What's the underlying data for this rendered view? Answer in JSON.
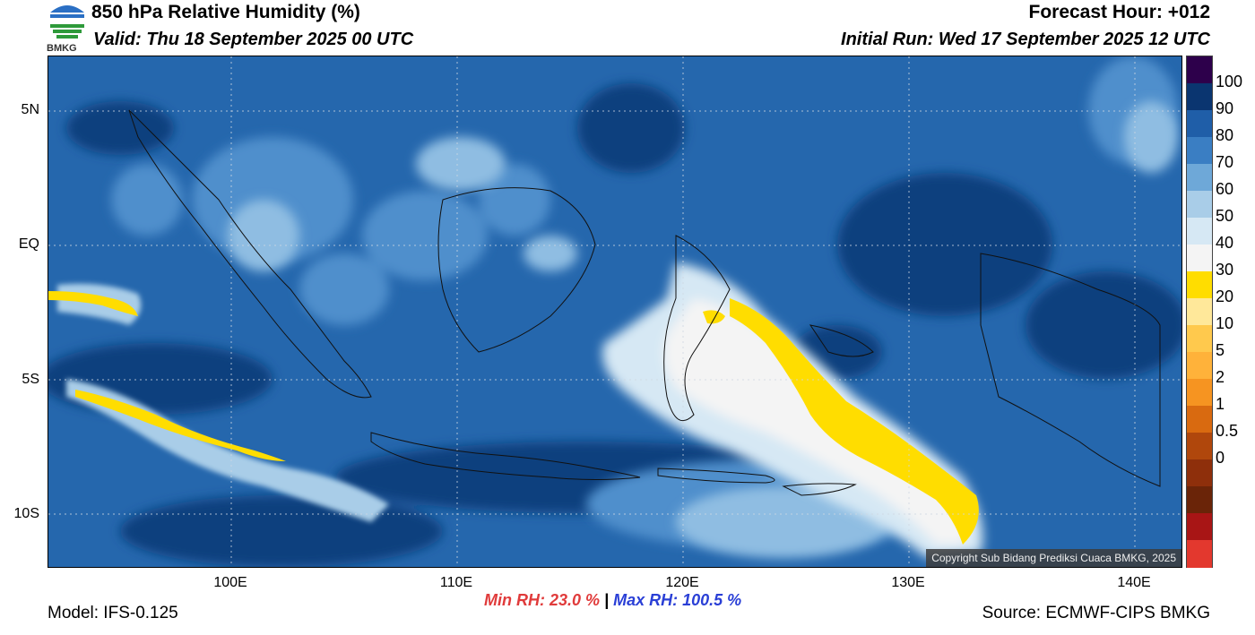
{
  "header": {
    "title": "850 hPa Relative Humidity (%)",
    "valid": "Valid: Thu 18 September 2025 00 UTC",
    "forecast_hour": "Forecast Hour: +012",
    "initial_run": "Initial Run: Wed 17 September 2025 12 UTC",
    "logo_text": "BMKG"
  },
  "map": {
    "lat_labels": [
      "5N",
      "EQ",
      "5S",
      "10S"
    ],
    "lon_labels": [
      "100E",
      "110E",
      "120E",
      "130E",
      "140E"
    ],
    "copyright": "Copyright Sub Bidang Prediksi Cuaca BMKG, 2025"
  },
  "colorbar": {
    "colors": [
      "#2d004b",
      "#0a3570",
      "#1f5ea8",
      "#3a7ec3",
      "#6ea8d8",
      "#a9cde8",
      "#d6e8f4",
      "#f4f4f4",
      "#ffdd00",
      "#ffe89a",
      "#ffc94d",
      "#ffb23a",
      "#f69421",
      "#d96a10",
      "#b0470c",
      "#8e2f0b",
      "#6a2408",
      "#a81515",
      "#e3382e"
    ],
    "labels": [
      "100",
      "90",
      "80",
      "70",
      "60",
      "50",
      "40",
      "30",
      "20",
      "10",
      "5",
      "2",
      "1",
      "0.5",
      "0"
    ]
  },
  "footer": {
    "model": "Model: IFS-0.125",
    "min_rh": "Min RH:  23.0 %",
    "separator": "|",
    "max_rh": "Max RH: 100.5 %",
    "source": "Source: ECMWF-CIPS BMKG"
  }
}
